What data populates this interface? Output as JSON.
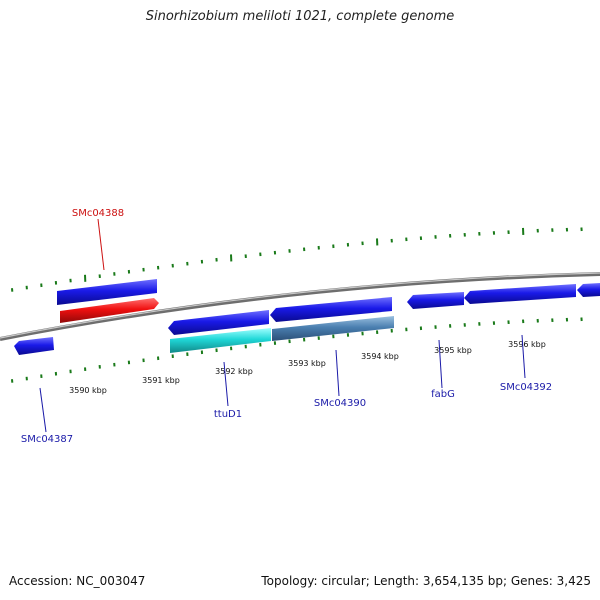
{
  "title": "Sinorhizobium meliloti 1021, complete genome",
  "footer": {
    "accession": "Accession: NC_003047",
    "topology": "Topology: circular; Length: 3,654,135 bp; Genes: 3,425"
  },
  "colors": {
    "backbone": "#8a8a8a",
    "tick": "#1a7a1a",
    "gene_blue": "#1a1ae8",
    "gene_red": "#f01010",
    "gene_cyan": "#20d8d8",
    "gene_steel": "#4a7fb0",
    "label_blue": "#1a1aa8",
    "label_red": "#cc1010"
  },
  "scale_labels": [
    "3590 kbp",
    "3591 kbp",
    "3592 kbp",
    "3593 kbp",
    "3594 kbp",
    "3595 kbp",
    "3596 kbp"
  ],
  "gene_labels": [
    {
      "text": "SMc04388",
      "color": "red"
    },
    {
      "text": "SMc04387",
      "color": "blue"
    },
    {
      "text": "ttuD1",
      "color": "blue"
    },
    {
      "text": "SMc04390",
      "color": "blue"
    },
    {
      "text": "fabG",
      "color": "blue"
    },
    {
      "text": "SMc04392",
      "color": "blue"
    }
  ]
}
